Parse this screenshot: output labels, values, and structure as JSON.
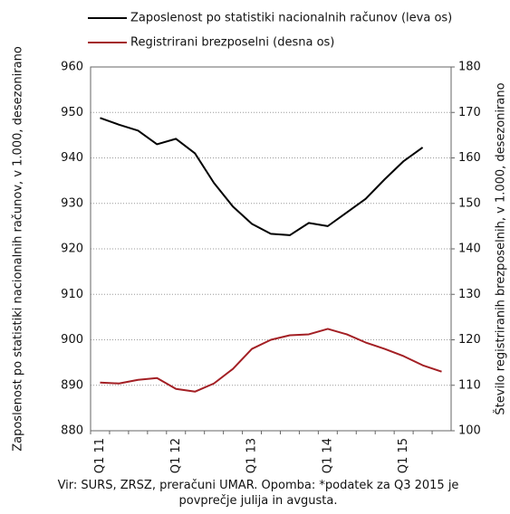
{
  "chart_data": {
    "type": "line",
    "y_label": "Zaposlenost po statistiki nacionalnih računov,  v 1.000, desezonirano",
    "y2_label": "Število registriranih brezposelnih, v 1.000, desezonirano",
    "note": "Vir: SURS, ZRSZ, preračuni UMAR. Opomba: *podatek za Q3 2015 je povprečje julija in avgusta.",
    "categories": [
      "Q1 11",
      null,
      null,
      null,
      "Q1 12",
      null,
      null,
      null,
      "Q1 13",
      null,
      null,
      null,
      "Q1 14",
      null,
      null,
      null,
      "Q1 15",
      null,
      null
    ],
    "series": [
      {
        "name": "Zaposlenost po statistiki nacionalnih računov (leva os)",
        "color": "#000000",
        "values": [
          948.8,
          947.3,
          946,
          943,
          944.2,
          941,
          934.5,
          929.3,
          925.5,
          923.3,
          923,
          925.7,
          925,
          928,
          931,
          935.3,
          939.3,
          942.3,
          null
        ]
      },
      {
        "name": "Registrirani brezposelni (desna os)",
        "color": "#a31f24",
        "axis": "y2",
        "values": [
          110.6,
          110.4,
          111.2,
          111.6,
          109.2,
          108.6,
          110.4,
          113.6,
          118,
          120,
          121,
          121.2,
          122.4,
          121.2,
          119.4,
          118,
          116.4,
          114.4,
          113
        ]
      }
    ],
    "ylim": [
      880,
      960
    ],
    "yticks": [
      880,
      890,
      900,
      910,
      920,
      930,
      940,
      950,
      960
    ],
    "y2lim": [
      100,
      180
    ],
    "y2ticks": [
      100,
      110,
      120,
      130,
      140,
      150,
      160,
      170,
      180
    ],
    "grid": true
  }
}
